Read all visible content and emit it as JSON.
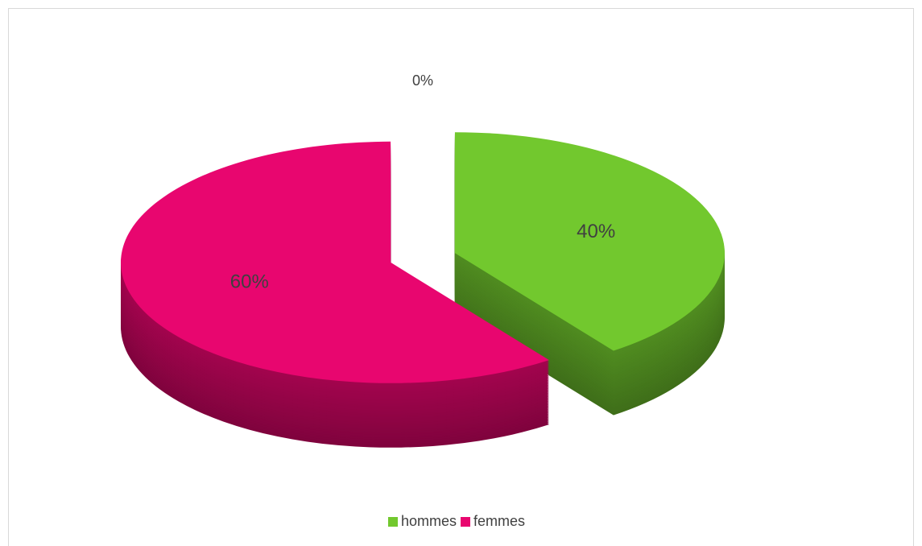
{
  "chart_data": {
    "type": "pie3d",
    "categories": [
      "hommes",
      "femmes",
      null
    ],
    "values": [
      40,
      60,
      0
    ],
    "value_labels": [
      "40%",
      "60%",
      "0%"
    ],
    "colors": [
      "#72c82e",
      "#e8066f"
    ],
    "legend": "bottom"
  }
}
